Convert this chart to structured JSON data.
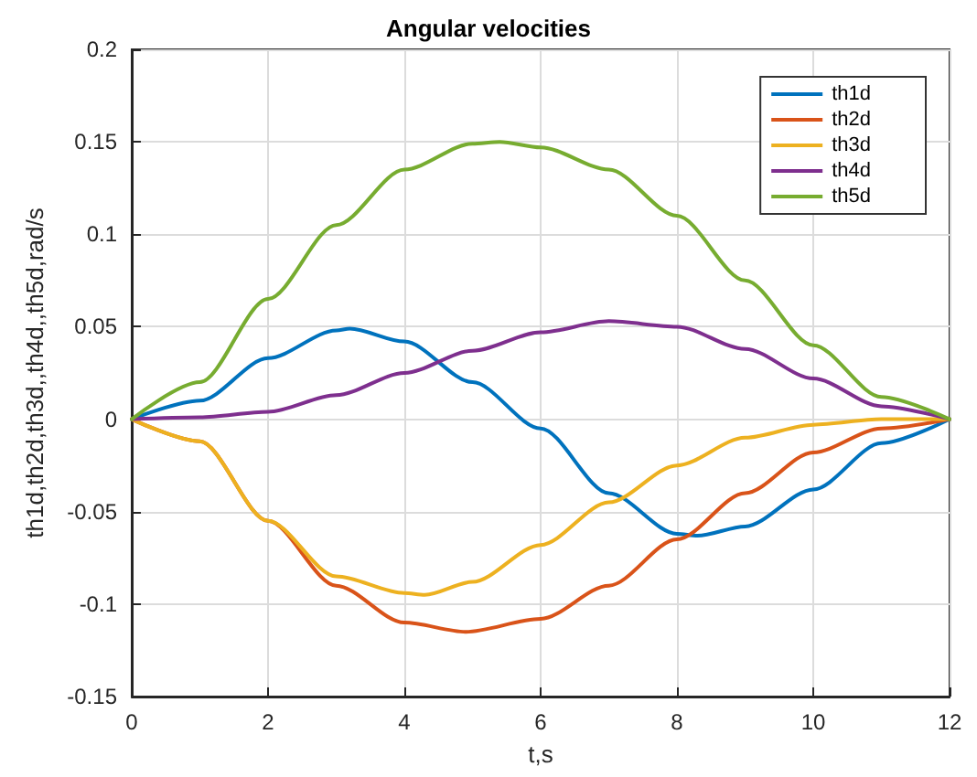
{
  "chart_data": {
    "type": "line",
    "title": "Angular velocities",
    "xlabel": "t,s",
    "ylabel": "th1d,th2d,th3d,,th4d,,th5d,rad/s",
    "x": [
      0,
      1,
      2,
      3,
      4,
      5,
      6,
      7,
      8,
      9,
      10,
      11,
      12
    ],
    "series": [
      {
        "name": "th1d",
        "color": "#0072bd",
        "x": [
          0,
          1,
          2,
          3,
          3.2,
          4,
          5,
          6,
          7,
          8,
          8.3,
          9,
          10,
          11,
          12
        ],
        "values": [
          0,
          0.01,
          0.033,
          0.048,
          0.049,
          0.042,
          0.02,
          -0.005,
          -0.04,
          -0.062,
          -0.063,
          -0.058,
          -0.038,
          -0.013,
          0
        ]
      },
      {
        "name": "th2d",
        "color": "#d95319",
        "x": [
          0,
          1,
          2,
          3,
          4,
          4.9,
          6,
          7,
          8,
          9,
          10,
          11,
          12
        ],
        "values": [
          0,
          -0.012,
          -0.055,
          -0.09,
          -0.11,
          -0.115,
          -0.108,
          -0.09,
          -0.065,
          -0.04,
          -0.018,
          -0.005,
          0
        ]
      },
      {
        "name": "th3d",
        "color": "#edb120",
        "x": [
          0,
          1,
          2,
          3,
          4,
          4.3,
          5,
          6,
          7,
          8,
          9,
          10,
          11,
          12
        ],
        "values": [
          0,
          -0.012,
          -0.055,
          -0.085,
          -0.094,
          -0.095,
          -0.088,
          -0.068,
          -0.045,
          -0.025,
          -0.01,
          -0.003,
          0,
          0
        ]
      },
      {
        "name": "th4d",
        "color": "#7e2f8e",
        "values": [
          0,
          0.001,
          0.004,
          0.013,
          0.025,
          0.037,
          0.047,
          0.053,
          0.05,
          0.038,
          0.022,
          0.007,
          0
        ]
      },
      {
        "name": "th5d",
        "color": "#77ac30",
        "x": [
          0,
          1,
          2,
          3,
          4,
          5,
          5.4,
          6,
          7,
          8,
          9,
          10,
          11,
          12
        ],
        "values": [
          0,
          0.02,
          0.065,
          0.105,
          0.135,
          0.149,
          0.15,
          0.147,
          0.135,
          0.11,
          0.075,
          0.04,
          0.012,
          0
        ]
      }
    ],
    "xlim": [
      0,
      12
    ],
    "xticks": [
      0,
      2,
      4,
      6,
      8,
      10,
      12
    ],
    "ylim": [
      -0.15,
      0.2
    ],
    "yticks": [
      -0.15,
      -0.1,
      -0.05,
      0,
      0.05,
      0.1,
      0.15,
      0.2
    ],
    "grid": true,
    "legend": "top right"
  }
}
